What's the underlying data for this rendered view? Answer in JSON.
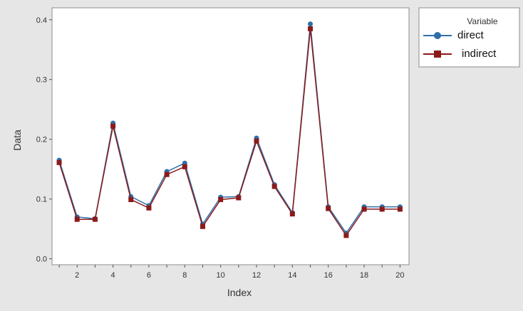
{
  "chart_data": {
    "type": "line",
    "xlabel": "Index",
    "ylabel": "Data",
    "xlim": [
      0.6,
      20.5
    ],
    "ylim": [
      -0.01,
      0.42
    ],
    "x_ticks": [
      2,
      4,
      6,
      8,
      10,
      12,
      14,
      16,
      18,
      20
    ],
    "y_ticks": [
      0.0,
      0.1,
      0.2,
      0.3,
      0.4
    ],
    "y_tick_labels": [
      "0.0",
      "0.1",
      "0.2",
      "0.3",
      "0.4"
    ],
    "grid": false,
    "legend": {
      "title": "Variable",
      "placement": "top-right-outside"
    },
    "x": [
      1,
      2,
      3,
      4,
      5,
      6,
      7,
      8,
      9,
      10,
      11,
      12,
      13,
      14,
      15,
      16,
      17,
      18,
      19,
      20
    ],
    "series": [
      {
        "name": "direct",
        "color": "#2f6fa8",
        "marker": "circle",
        "values": [
          0.165,
          0.07,
          0.067,
          0.227,
          0.104,
          0.089,
          0.146,
          0.16,
          0.058,
          0.103,
          0.104,
          0.202,
          0.124,
          0.077,
          0.393,
          0.087,
          0.043,
          0.087,
          0.087,
          0.087
        ]
      },
      {
        "name": "indirect",
        "color": "#8b1a1a",
        "marker": "square",
        "values": [
          0.161,
          0.066,
          0.066,
          0.222,
          0.099,
          0.085,
          0.141,
          0.154,
          0.054,
          0.099,
          0.102,
          0.197,
          0.121,
          0.075,
          0.385,
          0.084,
          0.039,
          0.083,
          0.083,
          0.083
        ]
      }
    ]
  }
}
